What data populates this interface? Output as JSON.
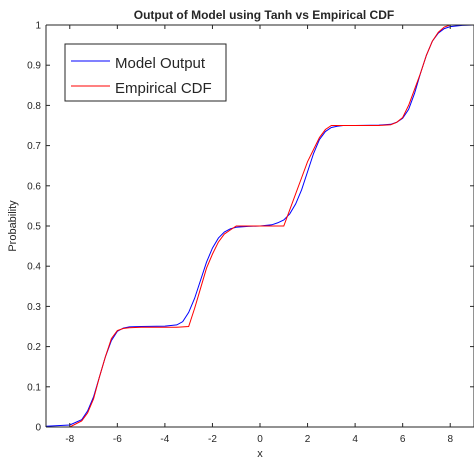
{
  "chart_data": {
    "type": "line",
    "title": "Output of Model using Tanh vs Empirical CDF",
    "xlabel": "x",
    "ylabel": "Probability",
    "xlim": [
      -9,
      9
    ],
    "ylim": [
      0,
      1
    ],
    "xticks": [
      -8,
      -6,
      -4,
      -2,
      0,
      2,
      4,
      6,
      8
    ],
    "xtick_labels": [
      "-8",
      "-6",
      "-4",
      "-2",
      "0",
      "2",
      "4",
      "6",
      "8"
    ],
    "yticks": [
      0,
      0.1,
      0.2,
      0.3,
      0.4,
      0.5,
      0.6,
      0.7,
      0.8,
      0.9,
      1
    ],
    "ytick_labels": [
      "0",
      "0.1",
      "0.2",
      "0.3",
      "0.4",
      "0.5",
      "0.6",
      "0.7",
      "0.8",
      "0.9",
      "1"
    ],
    "grid": false,
    "legend_position": "top-left",
    "series": [
      {
        "name": "Model Output",
        "color": "#0000ff",
        "x": [
          -9,
          -8,
          -7.5,
          -7.25,
          -7,
          -6.75,
          -6.5,
          -6.25,
          -6,
          -5.75,
          -5.5,
          -5,
          -4,
          -3.5,
          -3.25,
          -3,
          -2.75,
          -2.5,
          -2.25,
          -2,
          -1.75,
          -1.5,
          -1.25,
          -1,
          -0.5,
          0,
          0.5,
          0.75,
          1,
          1.25,
          1.5,
          1.75,
          2,
          2.25,
          2.5,
          2.75,
          3,
          3.25,
          3.5,
          4,
          5,
          5.5,
          5.75,
          6,
          6.25,
          6.5,
          6.75,
          7,
          7.25,
          7.5,
          7.75,
          8,
          8.5,
          9
        ],
        "y": [
          0.002,
          0.005,
          0.018,
          0.04,
          0.075,
          0.125,
          0.175,
          0.215,
          0.238,
          0.246,
          0.249,
          0.25,
          0.251,
          0.254,
          0.262,
          0.285,
          0.32,
          0.365,
          0.41,
          0.445,
          0.47,
          0.485,
          0.493,
          0.497,
          0.499,
          0.5,
          0.503,
          0.508,
          0.515,
          0.53,
          0.555,
          0.59,
          0.635,
          0.68,
          0.715,
          0.735,
          0.745,
          0.748,
          0.75,
          0.75,
          0.751,
          0.753,
          0.758,
          0.768,
          0.79,
          0.83,
          0.88,
          0.925,
          0.96,
          0.98,
          0.991,
          0.996,
          0.999,
          1.0
        ]
      },
      {
        "name": "Empirical CDF",
        "color": "#ff0000",
        "x": [
          -9,
          -8,
          -7.5,
          -7.25,
          -7,
          -6.75,
          -6.5,
          -6.25,
          -6,
          -5.75,
          -5.5,
          -5,
          -4,
          -3.5,
          -3,
          -2.75,
          -2.5,
          -2.25,
          -2,
          -1.75,
          -1.5,
          -1.25,
          -1,
          0,
          1,
          1.25,
          1.5,
          1.75,
          2,
          2.25,
          2.5,
          2.75,
          3,
          4,
          5,
          5.5,
          5.75,
          6,
          6.25,
          6.5,
          6.75,
          7,
          7.25,
          7.5,
          7.75,
          8,
          8.5,
          9
        ],
        "y": [
          0,
          0,
          0.015,
          0.035,
          0.07,
          0.125,
          0.175,
          0.22,
          0.24,
          0.245,
          0.247,
          0.248,
          0.248,
          0.248,
          0.25,
          0.295,
          0.345,
          0.395,
          0.43,
          0.46,
          0.48,
          0.49,
          0.5,
          0.5,
          0.5,
          0.54,
          0.58,
          0.62,
          0.66,
          0.69,
          0.72,
          0.74,
          0.75,
          0.75,
          0.75,
          0.752,
          0.758,
          0.77,
          0.8,
          0.84,
          0.88,
          0.925,
          0.96,
          0.982,
          0.995,
          1.0,
          1.0,
          1.0
        ]
      }
    ]
  }
}
